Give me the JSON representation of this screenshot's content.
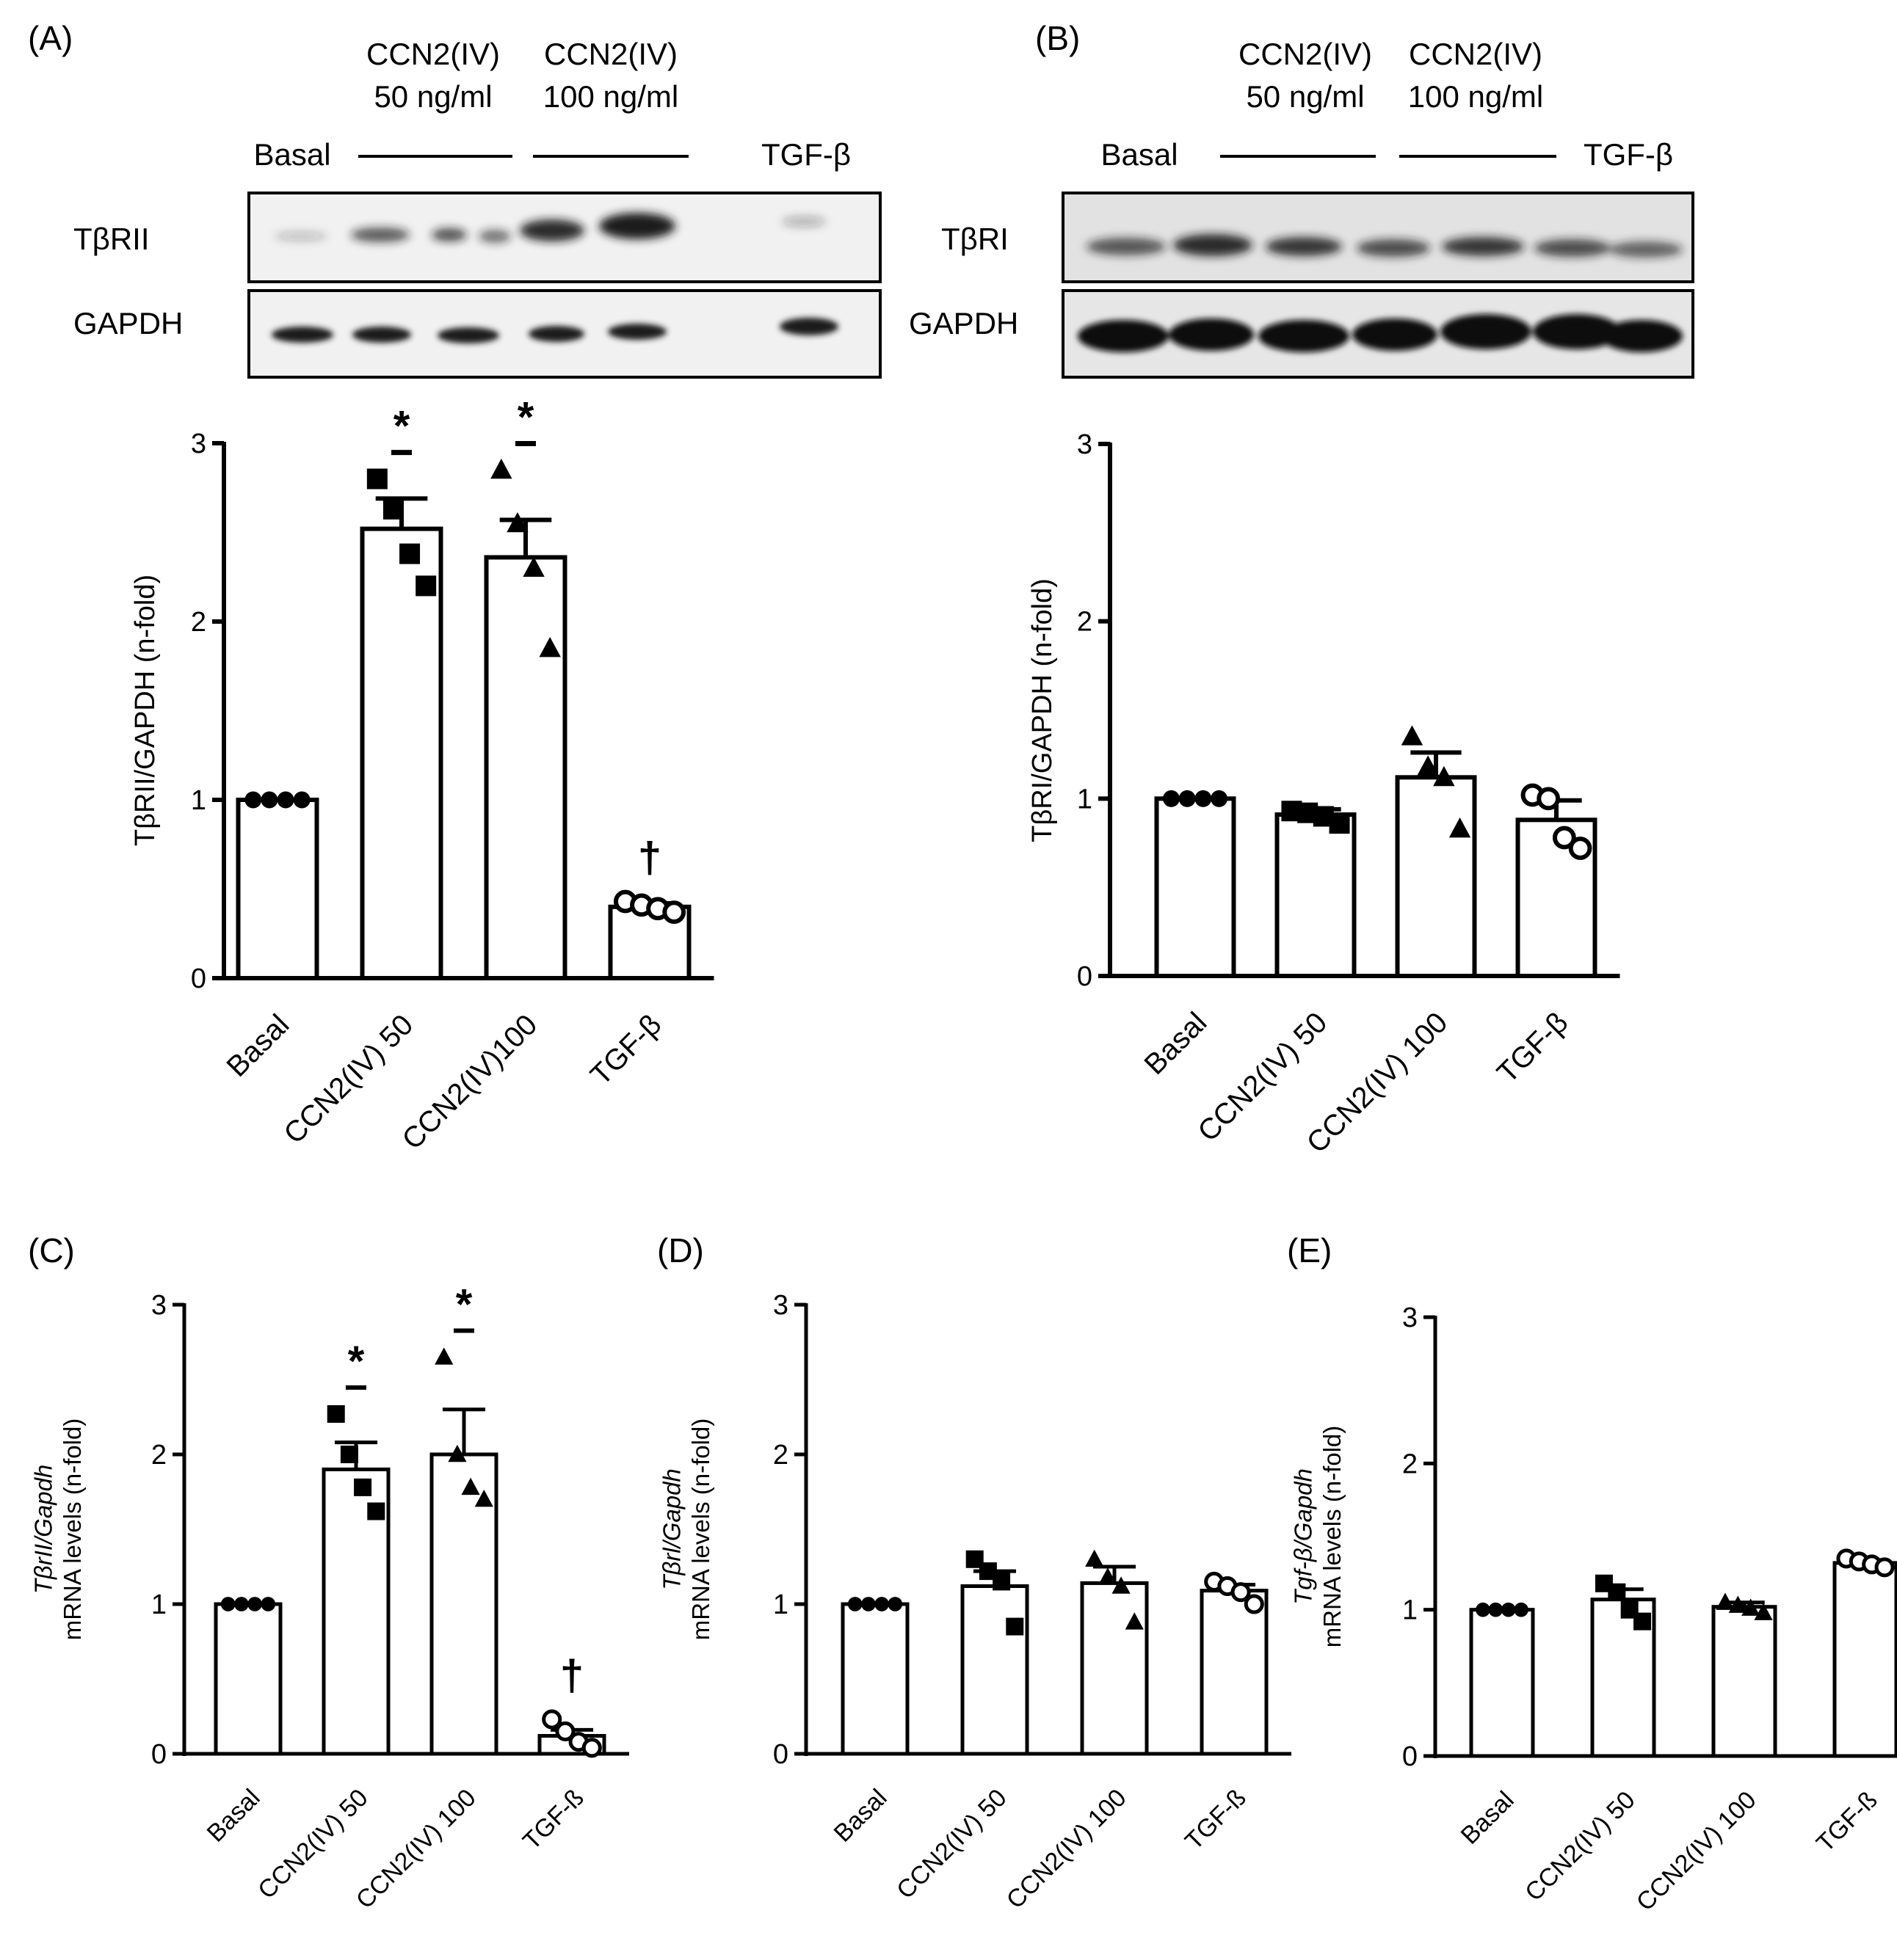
{
  "colors": {
    "ink": "#000000",
    "bar_fill": "#ffffff",
    "blot_bg": "#f1f1f1",
    "band": "#1a1a1a"
  },
  "panels": {
    "A": {
      "label": "(A)",
      "blot": {
        "group_labels": [
          {
            "line1": "CCN2(IV)",
            "line2": "50 ng/ml"
          },
          {
            "line1": "CCN2(IV)",
            "line2": "100 ng/ml"
          }
        ],
        "basal_label": "Basal",
        "tgf_label": "TGF-β",
        "row_labels": [
          "TβRII",
          "GAPDH"
        ]
      }
    },
    "B": {
      "label": "(B)",
      "blot": {
        "group_labels": [
          {
            "line1": "CCN2(IV)",
            "line2": "50 ng/ml"
          },
          {
            "line1": "CCN2(IV)",
            "line2": "100 ng/ml"
          }
        ],
        "basal_label": "Basal",
        "tgf_label": "TGF-β",
        "row_labels": [
          "TβRI",
          "GAPDH"
        ]
      }
    },
    "C": {
      "label": "(C)"
    },
    "D": {
      "label": "(D)"
    },
    "E": {
      "label": "(E)"
    }
  },
  "chart_data": [
    {
      "panel": "A",
      "type": "bar",
      "categories": [
        "Basal",
        "CCN2(IV) 50",
        "CCN2(IV)100",
        "TGF-β"
      ],
      "values": [
        1.0,
        2.52,
        2.36,
        0.4
      ],
      "errors": [
        0,
        0.17,
        0.21,
        0.02
      ],
      "points": [
        [
          1.0,
          1.0,
          1.0,
          1.0
        ],
        [
          2.8,
          2.63,
          2.38,
          2.2
        ],
        [
          2.85,
          2.55,
          2.3,
          1.85
        ],
        [
          0.43,
          0.41,
          0.39,
          0.37
        ]
      ],
      "markers": [
        "circle-filled",
        "square",
        "triangle",
        "circle-open"
      ],
      "significance": [
        "",
        "*",
        "*",
        "†"
      ],
      "ylabel": "TβRII/GAPDH (n-fold)",
      "ylim": [
        0,
        3
      ],
      "yticks": [
        "0",
        "1",
        "2",
        "3"
      ]
    },
    {
      "panel": "B",
      "type": "bar",
      "categories": [
        "Basal",
        "CCN2(IV) 50",
        "CCN2(IV) 100",
        "TGF-β"
      ],
      "values": [
        1.0,
        0.91,
        1.12,
        0.88
      ],
      "errors": [
        0,
        0.03,
        0.14,
        0.11
      ],
      "points": [
        [
          1.0,
          1.0,
          1.0,
          1.0
        ],
        [
          0.93,
          0.92,
          0.9,
          0.86
        ],
        [
          1.35,
          1.18,
          1.12,
          0.83
        ],
        [
          1.02,
          1.0,
          0.78,
          0.72
        ]
      ],
      "markers": [
        "circle-filled",
        "square",
        "triangle",
        "circle-open"
      ],
      "significance": [
        "",
        "",
        "",
        ""
      ],
      "ylabel": "TβRI/GAPDH (n-fold)",
      "ylim": [
        0,
        3
      ],
      "yticks": [
        "0",
        "1",
        "2",
        "3"
      ]
    },
    {
      "panel": "C",
      "type": "bar",
      "categories": [
        "Basal",
        "CCN2(IV) 50",
        "CCN2(IV) 100",
        "TGF-ß"
      ],
      "values": [
        1.0,
        1.9,
        2.0,
        0.12
      ],
      "errors": [
        0,
        0.18,
        0.3,
        0.04
      ],
      "points": [
        [
          1.0,
          1.0,
          1.0,
          1.0
        ],
        [
          2.27,
          2.0,
          1.78,
          1.62
        ],
        [
          2.65,
          2.0,
          1.78,
          1.7
        ],
        [
          0.23,
          0.15,
          0.08,
          0.04
        ]
      ],
      "markers": [
        "circle-filled",
        "square",
        "triangle",
        "circle-open"
      ],
      "significance": [
        "",
        "*",
        "*",
        "†"
      ],
      "ylabel_italic": "TβrII/Gapdh",
      "ylabel": "mRNA levels (n-fold)",
      "ylim": [
        0,
        3
      ],
      "yticks": [
        "0",
        "1",
        "2",
        "3"
      ]
    },
    {
      "panel": "D",
      "type": "bar",
      "categories": [
        "Basal",
        "CCN2(IV) 50",
        "CCN2(IV) 100",
        "TGF-ß"
      ],
      "values": [
        1.0,
        1.12,
        1.14,
        1.09
      ],
      "errors": [
        0,
        0.1,
        0.11,
        0.04
      ],
      "points": [
        [
          1.0,
          1.0,
          1.0,
          1.0
        ],
        [
          1.3,
          1.22,
          1.15,
          0.85
        ],
        [
          1.3,
          1.18,
          1.12,
          0.88
        ],
        [
          1.15,
          1.12,
          1.08,
          1.0
        ]
      ],
      "markers": [
        "circle-filled",
        "square",
        "triangle",
        "circle-open"
      ],
      "significance": [
        "",
        "",
        "",
        ""
      ],
      "ylabel_italic": "Tβrl/Gapdh",
      "ylabel": "mRNA levels (n-fold)",
      "ylim": [
        0,
        3
      ],
      "yticks": [
        "0",
        "1",
        "2",
        "3"
      ]
    },
    {
      "panel": "E",
      "type": "bar",
      "categories": [
        "Basal",
        "CCN2(IV) 50",
        "CCN2(IV) 100",
        "TGF-ß"
      ],
      "values": [
        1.0,
        1.07,
        1.02,
        1.32
      ],
      "errors": [
        0,
        0.07,
        0.03,
        0.02
      ],
      "points": [
        [
          1.0,
          1.0,
          1.0,
          1.0
        ],
        [
          1.18,
          1.12,
          1.0,
          0.92
        ],
        [
          1.05,
          1.03,
          1.01,
          0.98
        ],
        [
          1.35,
          1.33,
          1.31,
          1.29
        ]
      ],
      "markers": [
        "circle-filled",
        "square",
        "triangle",
        "circle-open"
      ],
      "significance": [
        "",
        "",
        "",
        ""
      ],
      "ylabel_italic": "Tgf-β/Gapdh",
      "ylabel": "mRNA levels (n-fold)",
      "ylim": [
        0,
        3
      ],
      "yticks": [
        "0",
        "1",
        "2",
        "3"
      ]
    }
  ]
}
